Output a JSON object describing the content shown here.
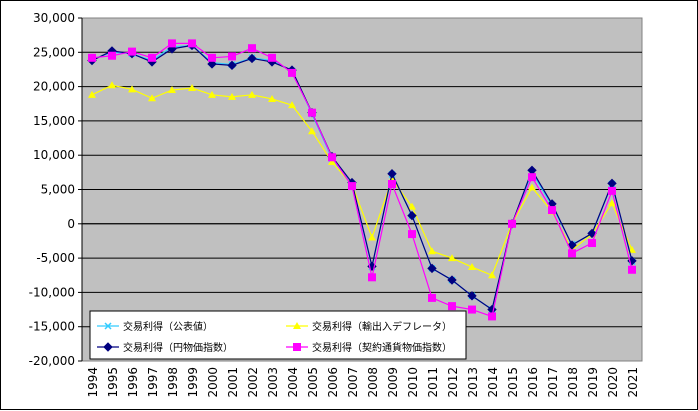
{
  "chart_data": {
    "type": "line",
    "title": "",
    "xlabel": "",
    "ylabel": "",
    "x": [
      "1994",
      "1995",
      "1996",
      "1997",
      "1998",
      "1999",
      "2000",
      "2001",
      "2002",
      "2003",
      "2004",
      "2005",
      "2006",
      "2007",
      "2008",
      "2009",
      "2010",
      "2011",
      "2012",
      "2013",
      "2014",
      "2015",
      "2016",
      "2017",
      "2018",
      "2019",
      "2020",
      "2021"
    ],
    "ylim": [
      -20000,
      30000
    ],
    "ytick_step": 5000,
    "ytick_labels": [
      "30,000",
      "25,000",
      "20,000",
      "15,000",
      "10,000",
      "5,000",
      "0",
      "-5,000",
      "-10,000",
      "-15,000",
      "-20,000"
    ],
    "grid": true,
    "plot_background": "#c0c0c0",
    "legend_position": "bottom-left-inside",
    "series": [
      {
        "name": "交易利得（公表値）",
        "color": "#33ccff",
        "marker": "x",
        "values": [
          24000,
          25000,
          24800,
          23800,
          25800,
          26000,
          23500,
          23200,
          24200,
          23800,
          22300,
          16000,
          9500,
          5700,
          -6300,
          7200,
          1200,
          -6500,
          -8200,
          -10500,
          -12500,
          0,
          7500,
          2600,
          -3000,
          -1500,
          5800,
          -5500
        ]
      },
      {
        "name": "交易利得（輸出入デフレータ）",
        "color": "#ffff00",
        "marker": "triangle",
        "values": [
          18800,
          20200,
          19600,
          18300,
          19500,
          19800,
          18800,
          18500,
          18800,
          18200,
          17300,
          13500,
          9000,
          5700,
          -2000,
          6500,
          2500,
          -4000,
          -5000,
          -6300,
          -7500,
          0,
          5300,
          1800,
          -3800,
          -1500,
          3000,
          -3800
        ]
      },
      {
        "name": "交易利得（円物価指数）",
        "color": "#000080",
        "marker": "diamond",
        "values": [
          23800,
          25200,
          24800,
          23600,
          25500,
          26000,
          23300,
          23100,
          24100,
          23600,
          22400,
          16200,
          9800,
          6000,
          -6200,
          7300,
          1200,
          -6500,
          -8200,
          -10500,
          -12500,
          0,
          7800,
          2900,
          -3100,
          -1400,
          5900,
          -5400
        ]
      },
      {
        "name": "交易利得（契約通貨物価指数）",
        "color": "#ff00ff",
        "marker": "square",
        "values": [
          24200,
          24500,
          25100,
          24200,
          26300,
          26300,
          24200,
          24400,
          25600,
          24200,
          22000,
          16200,
          9700,
          5500,
          -7800,
          5800,
          -1500,
          -10800,
          -12000,
          -12500,
          -13500,
          0,
          6800,
          2000,
          -4300,
          -2800,
          4800,
          -6700
        ]
      }
    ]
  }
}
